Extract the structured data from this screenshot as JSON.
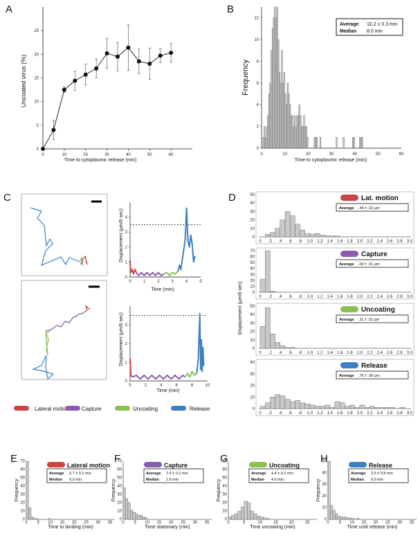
{
  "panels": {
    "A": {
      "label": "A"
    },
    "B": {
      "label": "B"
    },
    "C": {
      "label": "C"
    },
    "D": {
      "label": "D"
    },
    "E": {
      "label": "E"
    },
    "F": {
      "label": "F"
    },
    "G": {
      "label": "G"
    },
    "H": {
      "label": "H"
    }
  },
  "colors": {
    "lateral": "#cc4444",
    "capture": "#8a5cb0",
    "uncoating": "#8cc152",
    "release": "#3d7fc1",
    "bar_fill": "#c8c8c8",
    "bar_stroke": "#555555"
  },
  "legend_c": {
    "lateral": "Lateral motion",
    "capture": "Capture",
    "uncoating": "Uncoating",
    "release": "Release"
  },
  "chart_data": [
    {
      "id": "A",
      "type": "line",
      "xlabel": "Time to cytoplasmic release (min)",
      "ylabel": "Uncoated virus (%)",
      "xlim": [
        0,
        70
      ],
      "ylim": [
        0,
        30
      ],
      "xticks": [
        0,
        10,
        20,
        30,
        40,
        50,
        60
      ],
      "yticks": [
        0,
        5,
        10,
        15,
        20,
        25
      ],
      "x": [
        0,
        5,
        10,
        15,
        20,
        25,
        30,
        35,
        40,
        45,
        50,
        55,
        60
      ],
      "y": [
        0,
        4.0,
        12.5,
        14.4,
        15.7,
        17.0,
        20.2,
        19.5,
        21.4,
        18.5,
        18.0,
        19.7,
        20.3
      ],
      "err": [
        0,
        2.0,
        0.6,
        2.0,
        2.2,
        2.0,
        3.2,
        3.0,
        4.8,
        2.6,
        3.3,
        1.5,
        2.0
      ]
    },
    {
      "id": "B",
      "type": "bar",
      "xlabel": "Time to cytoplasmic release (min)",
      "ylabel": "Frequency",
      "xlim": [
        0,
        60
      ],
      "ylim": [
        0,
        13
      ],
      "xticks": [
        0,
        10,
        20,
        30,
        40,
        50,
        60
      ],
      "yticks": [
        0,
        2,
        4,
        6,
        8,
        10,
        12
      ],
      "bin_width": 0.5,
      "bin_start": 0,
      "values": [
        0,
        1,
        2,
        1,
        2,
        3,
        5,
        6,
        9,
        11,
        12,
        13,
        12,
        13,
        10,
        7,
        6,
        9,
        6,
        7,
        5,
        4,
        6,
        5,
        4,
        3,
        3,
        2,
        3,
        2,
        3,
        3,
        4,
        3,
        2,
        2,
        3,
        2,
        2,
        1,
        0,
        0,
        0,
        0,
        0,
        1,
        1,
        1,
        0,
        0,
        1,
        0,
        0,
        0,
        0,
        0,
        0,
        0,
        0,
        0,
        0,
        0,
        0,
        0,
        1,
        0,
        0,
        0,
        0,
        0,
        1,
        0,
        0,
        0,
        0,
        0,
        0,
        0,
        1,
        1,
        0,
        0,
        0,
        0,
        1,
        1,
        1,
        0
      ],
      "stats": {
        "avg_label": "Average",
        "avg_value": "10.2 ± 0.3 min",
        "med_label": "Median",
        "med_value": "8.0 min"
      }
    },
    {
      "id": "C-top",
      "type": "line",
      "xlabel": "Time (min)",
      "ylabel": "Displacement (µm/6 sec)",
      "xlim": [
        0,
        5
      ],
      "ylim": [
        0,
        5
      ],
      "xticks": [
        0,
        1,
        2,
        3,
        4,
        5
      ],
      "yticks": [
        0,
        1,
        2,
        3,
        4
      ],
      "threshold": 3.5
    },
    {
      "id": "C-bottom",
      "type": "line",
      "xlabel": "Time (min)",
      "ylabel": "Displacement (µm/6 sec)",
      "xlim": [
        0,
        10
      ],
      "ylim": [
        0,
        4
      ],
      "xticks": [
        0,
        2,
        4,
        6,
        8,
        10
      ],
      "yticks": [
        0,
        1,
        2,
        3
      ],
      "threshold": 3.5
    },
    {
      "id": "D",
      "type": "bar",
      "ylabel": "Displacement (µm/6 sec)",
      "xticks": [
        "0",
        ".2",
        ".4",
        ".6",
        ".8",
        "1.0",
        "1.2",
        "1.4",
        "1.6",
        "1.8",
        "2.0",
        "2.2",
        "2.4",
        "2.6",
        "2.8",
        "3.0"
      ],
      "panels": [
        {
          "name": "Lat. motion",
          "ylim": [
            0,
            50
          ],
          "yticks": [
            0,
            10,
            20,
            30,
            40,
            50
          ],
          "avg_label": "Average",
          "avg_value": ".44 ± .02 µm",
          "values": [
            0,
            3,
            5,
            10,
            20,
            30,
            25,
            15,
            8,
            4,
            3,
            4,
            2,
            1,
            1,
            1,
            0,
            0,
            0,
            0,
            0,
            0,
            0,
            0,
            0,
            0,
            0,
            0,
            0,
            0
          ]
        },
        {
          "name": "Capture",
          "ylim": [
            0,
            70
          ],
          "yticks": [
            0,
            10,
            20,
            30,
            40,
            50,
            60,
            70
          ],
          "avg_label": "Average",
          "avg_value": ".09 ± .01 µm",
          "values": [
            22,
            70,
            2,
            0,
            0,
            0,
            0,
            0,
            0,
            0,
            0,
            0,
            0,
            0,
            0,
            0,
            0,
            0,
            0,
            0,
            0,
            0,
            0,
            0,
            0,
            0,
            0,
            0,
            0,
            0
          ]
        },
        {
          "name": "Uncoating",
          "ylim": [
            0,
            50
          ],
          "yticks": [
            0,
            10,
            20,
            30,
            40,
            50
          ],
          "avg_label": "Average",
          "avg_value": ".11 ± .01 µm",
          "values": [
            26,
            48,
            17,
            7,
            3,
            1,
            1,
            0,
            0,
            0,
            0,
            0,
            0,
            0,
            0,
            0,
            0,
            0,
            0,
            0,
            0,
            0,
            0,
            0,
            0,
            0,
            0,
            0,
            0,
            0
          ]
        },
        {
          "name": "Release",
          "ylim": [
            0,
            40
          ],
          "yticks": [
            0,
            10,
            20,
            30,
            40
          ],
          "avg_label": "Average",
          "avg_value": ".76 ± .08 µm",
          "values": [
            2,
            5,
            10,
            12,
            11,
            8,
            6,
            7,
            5,
            4,
            3,
            2,
            2,
            3,
            1,
            6,
            5,
            2,
            3,
            1,
            3,
            1,
            2,
            1,
            1,
            1,
            1,
            0,
            1,
            0
          ]
        }
      ]
    },
    {
      "id": "E",
      "type": "bar",
      "name": "Lateral motion",
      "xlabel": "Time to binding (min)",
      "ylabel": "Frequency",
      "ylim": [
        0,
        70
      ],
      "yticks": [
        0,
        10,
        20,
        30,
        40,
        50,
        60,
        70
      ],
      "xticks": [
        0,
        5,
        10,
        15,
        20,
        25,
        30,
        35
      ],
      "values": [
        72,
        14,
        3,
        1,
        1,
        0,
        0,
        0,
        0,
        1,
        0,
        0,
        0,
        0,
        0,
        0,
        0,
        0,
        0,
        0,
        0,
        0,
        0,
        0,
        0,
        0,
        0,
        0,
        0,
        0,
        0,
        0,
        0,
        0,
        0,
        0,
        0
      ],
      "avg_label": "Average",
      "avg_value": "0.7 ± 0.2 min",
      "med_label": "Median",
      "med_value": "0.0 min"
    },
    {
      "id": "F",
      "type": "bar",
      "name": "Capture",
      "xlabel": "Time stationary (min)",
      "ylabel": "Frequency",
      "ylim": [
        0,
        70
      ],
      "yticks": [
        0,
        10,
        20,
        30,
        40,
        50,
        60,
        70
      ],
      "xticks": [
        0,
        5,
        10,
        15,
        20,
        25,
        30,
        35
      ],
      "values": [
        38,
        25,
        20,
        11,
        9,
        7,
        5,
        5,
        3,
        2,
        0,
        0,
        0,
        0,
        0,
        0,
        0,
        0,
        0,
        0,
        0,
        0,
        0,
        0,
        0,
        0,
        0,
        0,
        0,
        0,
        0,
        0,
        0,
        0,
        0,
        0,
        0
      ],
      "avg_label": "Average",
      "avg_value": "2.4 ± 0.2 min",
      "med_label": "Median",
      "med_value": "1.6 min"
    },
    {
      "id": "G",
      "type": "bar",
      "name": "Uncoating",
      "xlabel": "Time uncoating (min)",
      "ylabel": "Frequency",
      "ylim": [
        0,
        70
      ],
      "yticks": [
        0,
        10,
        20,
        30,
        40,
        50,
        60,
        70
      ],
      "xticks": [
        0,
        5,
        10,
        15,
        20,
        25
      ],
      "values": [
        3,
        5,
        7,
        10,
        15,
        22,
        20,
        10,
        7,
        4,
        3,
        2,
        1,
        0,
        0,
        0,
        0,
        0,
        0,
        0,
        0,
        0,
        0,
        0,
        0,
        0,
        0,
        0
      ],
      "avg_label": "Average",
      "avg_value": "4.4 ± 0.2 min",
      "med_label": "Median",
      "med_value": "4.0 min"
    },
    {
      "id": "H",
      "type": "bar",
      "name": "Release",
      "xlabel": "Time until release (min)",
      "ylabel": "Frequency",
      "ylim": [
        0,
        50
      ],
      "yticks": [
        0,
        10,
        20,
        30,
        40,
        50
      ],
      "xticks": [
        0,
        5,
        10,
        15,
        20,
        25,
        30,
        35
      ],
      "values": [
        50,
        12,
        8,
        5,
        3,
        2,
        2,
        2,
        1,
        1,
        1,
        0,
        1,
        0,
        0,
        0,
        0,
        0,
        0,
        0,
        0,
        0,
        0,
        0,
        0,
        0,
        0,
        0,
        0,
        0,
        0,
        0,
        0,
        0,
        0,
        0,
        0
      ],
      "avg_label": "Average",
      "avg_value": "3.5 ± 0.8 min",
      "med_label": "Median",
      "med_value": "0.0 min"
    }
  ]
}
